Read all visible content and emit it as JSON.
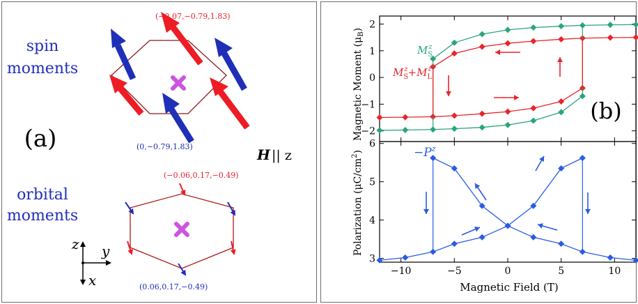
{
  "panel_a": {
    "label": "(a)",
    "spin_title_line1": "spin",
    "spin_title_line2": "moments",
    "orbital_title_line1": "orbital",
    "orbital_title_line2": "moments",
    "spin_coord_top": "(−0.07,−0.79,1.83)",
    "spin_coord_bottom": "(0,−0.79,1.83)",
    "orb_coord_top": "(−0.06,0.17,−0.49)",
    "orb_coord_bottom": "(0.06,0.17,−0.49)",
    "field_label": "H",
    "field_suffix": "|| z",
    "axis_z": "z",
    "axis_y": "y",
    "axis_x": "x",
    "colors": {
      "red": "#ee1c24",
      "blue": "#1f2fb8",
      "hex": "#8b1a1a",
      "magenta": "#cc55dd",
      "blue_text": "#2233aa"
    }
  },
  "panel_b": {
    "label": "(b)",
    "xlabel": "Magnetic Field (T)",
    "top_ylabel": "Magnetic Moment (μ",
    "top_ylabel_sub": "B",
    "bottom_ylabel": "Polarization (μC/cm",
    "bottom_ylabel_sup": "2",
    "legend_ms": "M",
    "legend_ms_sub": "S",
    "legend_ms_sup": "z",
    "legend_msml_a": "M",
    "legend_msml_plus": "+M",
    "legend_sub_s": "S",
    "legend_sub_l": "L",
    "legend_sup_z": "z",
    "legend_p": "−P",
    "legend_p_sup": "z",
    "colors": {
      "green": "#2aa57a",
      "red": "#e8252a",
      "blue": "#2a5ce0"
    }
  },
  "chart_data": [
    {
      "type": "line",
      "title": "",
      "xlabel": "",
      "ylabel": "Magnetic Moment (μB)",
      "xlim": [
        -12,
        12
      ],
      "ylim": [
        -2.4,
        2.3
      ],
      "xticks": [
        -10,
        -5,
        0,
        5,
        10
      ],
      "yticks": [
        -2,
        -1,
        0,
        1,
        2
      ],
      "series": [
        {
          "name": "MSz (upper branch)",
          "x": [
            -7,
            -5,
            -2.4,
            0,
            2.4,
            5,
            7,
            9.6,
            12
          ],
          "y": [
            0.7,
            1.3,
            1.62,
            1.78,
            1.87,
            1.92,
            1.95,
            1.97,
            1.98
          ]
        },
        {
          "name": "MSz (lower branch)",
          "x": [
            -12,
            -9.6,
            -7,
            -5,
            -2.4,
            0,
            2.4,
            5,
            7
          ],
          "y": [
            -1.98,
            -1.97,
            -1.95,
            -1.92,
            -1.87,
            -1.78,
            -1.62,
            -1.3,
            -0.7
          ]
        },
        {
          "name": "MSz+MLz (upper branch)",
          "x": [
            -7,
            -5,
            -2.4,
            0,
            2.4,
            5,
            7,
            9.6,
            12
          ],
          "y": [
            0.4,
            0.9,
            1.15,
            1.28,
            1.36,
            1.43,
            1.47,
            1.49,
            1.5
          ]
        },
        {
          "name": "MSz+MLz (lower branch)",
          "x": [
            -12,
            -9.6,
            -7,
            -5,
            -2.4,
            0,
            2.4,
            5,
            7
          ],
          "y": [
            -1.5,
            -1.49,
            -1.47,
            -1.43,
            -1.36,
            -1.28,
            -1.15,
            -0.9,
            -0.4
          ]
        }
      ]
    },
    {
      "type": "line",
      "title": "",
      "xlabel": "Magnetic Field (T)",
      "ylabel": "Polarization (μC/cm2)",
      "xlim": [
        -12,
        12
      ],
      "ylim": [
        2.9,
        6.05
      ],
      "xticks": [
        -10,
        -5,
        0,
        5,
        10
      ],
      "yticks": [
        3,
        4,
        5,
        6
      ],
      "series": [
        {
          "name": "-Pz (up sweep)",
          "x": [
            -12,
            -9.6,
            -7,
            -5,
            -2.4,
            0,
            2.4,
            5,
            7
          ],
          "y": [
            2.95,
            3.02,
            3.17,
            3.38,
            3.55,
            3.85,
            4.37,
            5.35,
            5.62
          ]
        },
        {
          "name": "-Pz (down sweep)",
          "x": [
            12,
            9.6,
            7,
            5,
            2.4,
            0,
            -2.4,
            -5,
            -7
          ],
          "y": [
            2.95,
            3.02,
            3.17,
            3.38,
            3.55,
            3.85,
            4.37,
            5.35,
            5.62
          ]
        }
      ]
    }
  ]
}
